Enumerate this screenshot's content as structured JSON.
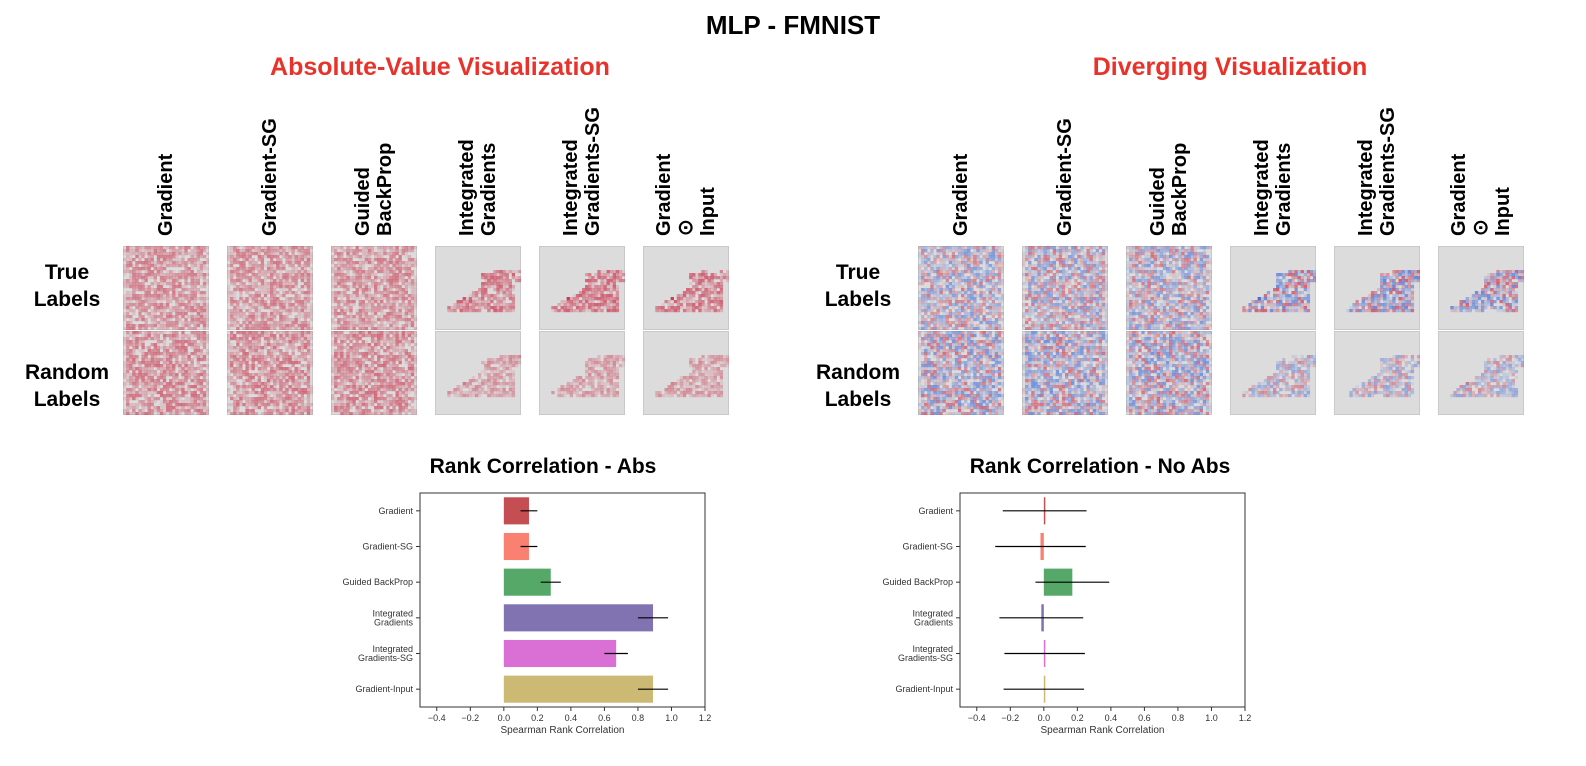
{
  "title": "MLP - FMNIST",
  "sections": {
    "abs_title": "Absolute-Value Visualization",
    "div_title": "Diverging Visualization"
  },
  "columns": [
    [
      "Gradient"
    ],
    [
      "Gradient-SG"
    ],
    [
      "Guided",
      "BackProp"
    ],
    [
      "Integrated",
      "Gradients"
    ],
    [
      "Integrated",
      "Gradients-SG"
    ],
    [
      "Gradient",
      "⊙",
      "Input"
    ]
  ],
  "rows": {
    "true": [
      "True",
      "Labels"
    ],
    "random": [
      "Random",
      "Labels"
    ]
  },
  "colors": {
    "title_red": "#e8322a",
    "heat_red": "#c8102e",
    "heat_blue": "#2a5bd7",
    "tile_bg": "#dcdcdc"
  },
  "chart_data": [
    {
      "type": "bar",
      "orientation": "horizontal",
      "title": "Rank Correlation - Abs",
      "xlabel": "Spearman Rank Correlation",
      "categories": [
        [
          "Gradient"
        ],
        [
          "Gradient-SG"
        ],
        [
          "Guided BackProp"
        ],
        [
          "Integrated",
          "Gradients"
        ],
        [
          "Integrated",
          "Gradients-SG"
        ],
        [
          "Gradient-Input"
        ]
      ],
      "values": [
        0.15,
        0.15,
        0.28,
        0.89,
        0.67,
        0.89
      ],
      "errors": [
        0.05,
        0.05,
        0.06,
        0.09,
        0.07,
        0.09
      ],
      "colors": [
        "#c44e52",
        "#fa8072",
        "#55a868",
        "#8172b2",
        "#da70d6",
        "#ccb974"
      ],
      "xlim": [
        -0.5,
        1.2
      ],
      "xticks": [
        -0.4,
        -0.2,
        0.0,
        0.2,
        0.4,
        0.6,
        0.8,
        1.0,
        1.2
      ],
      "xtick_labels": [
        "−0.4",
        "−0.2",
        "0.0",
        "0.2",
        "0.4",
        "0.6",
        "0.8",
        "1.0",
        "1.2"
      ]
    },
    {
      "type": "bar",
      "orientation": "horizontal",
      "title": "Rank Correlation - No Abs",
      "xlabel": "Spearman Rank Correlation",
      "categories": [
        [
          "Gradient"
        ],
        [
          "Gradient-SG"
        ],
        [
          "Guided BackProp"
        ],
        [
          "Integrated",
          "Gradients"
        ],
        [
          "Integrated",
          "Gradients-SG"
        ],
        [
          "Gradient-Input"
        ]
      ],
      "values": [
        0.005,
        -0.02,
        0.17,
        -0.015,
        0.005,
        0.0
      ],
      "errors": [
        0.25,
        0.27,
        0.22,
        0.25,
        0.24,
        0.24
      ],
      "colors": [
        "#c44e52",
        "#fa8072",
        "#55a868",
        "#8172b2",
        "#da70d6",
        "#ccb974"
      ],
      "xlim": [
        -0.5,
        1.2
      ],
      "xticks": [
        -0.4,
        -0.2,
        0.0,
        0.2,
        0.4,
        0.6,
        0.8,
        1.0,
        1.2
      ],
      "xtick_labels": [
        "−0.4",
        "−0.2",
        "0.0",
        "0.2",
        "0.4",
        "0.6",
        "0.8",
        "1.0",
        "1.2"
      ]
    }
  ]
}
